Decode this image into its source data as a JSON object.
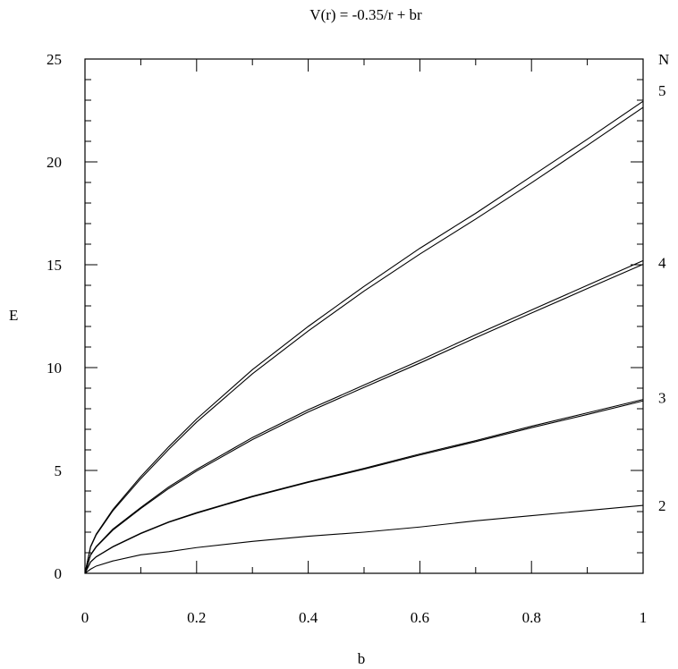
{
  "chart_data": {
    "type": "line",
    "title": "V(r) = -0.35/r + br",
    "xlabel": "b",
    "ylabel": "E",
    "xlim": [
      0,
      1
    ],
    "ylim": [
      0,
      25
    ],
    "x_ticks": [
      "0",
      "0.2",
      "0.4",
      "0.6",
      "0.8",
      "1"
    ],
    "y_ticks": [
      "0",
      "5",
      "10",
      "15",
      "20",
      "25"
    ],
    "right_axis_header": "N",
    "grid": false,
    "legend": "none",
    "x": [
      0,
      0.01,
      0.02,
      0.05,
      0.1,
      0.15,
      0.2,
      0.3,
      0.4,
      0.5,
      0.6,
      0.7,
      0.8,
      0.9,
      1.0
    ],
    "series": [
      {
        "name": "2",
        "lines": [
          [
            0,
            0.2,
            0.35,
            0.6,
            0.9,
            1.05,
            1.25,
            1.55,
            1.8,
            2.0,
            2.25,
            2.55,
            2.8,
            3.05,
            3.3
          ]
        ]
      },
      {
        "name": "3",
        "lines": [
          [
            0,
            0.55,
            0.8,
            1.3,
            1.95,
            2.5,
            2.95,
            3.75,
            4.45,
            5.1,
            5.8,
            6.45,
            7.15,
            7.8,
            8.45
          ],
          [
            0,
            0.55,
            0.8,
            1.28,
            1.93,
            2.48,
            2.92,
            3.72,
            4.42,
            5.06,
            5.75,
            6.4,
            7.08,
            7.72,
            8.38
          ]
        ]
      },
      {
        "name": "4",
        "lines": [
          [
            0,
            0.9,
            1.3,
            2.15,
            3.2,
            4.2,
            5.05,
            6.6,
            7.95,
            9.15,
            10.35,
            11.6,
            12.8,
            14.0,
            15.2
          ],
          [
            0,
            0.88,
            1.27,
            2.1,
            3.15,
            4.12,
            4.97,
            6.5,
            7.84,
            9.04,
            10.22,
            11.45,
            12.65,
            13.84,
            15.02
          ]
        ]
      },
      {
        "name": "5",
        "lines": [
          [
            0,
            1.3,
            1.9,
            3.1,
            4.7,
            6.15,
            7.5,
            9.9,
            12.0,
            13.95,
            15.8,
            17.5,
            19.3,
            21.1,
            22.95
          ],
          [
            0,
            1.27,
            1.86,
            3.04,
            4.6,
            6.02,
            7.35,
            9.7,
            11.78,
            13.72,
            15.52,
            17.22,
            18.98,
            20.8,
            22.65
          ]
        ]
      }
    ]
  }
}
